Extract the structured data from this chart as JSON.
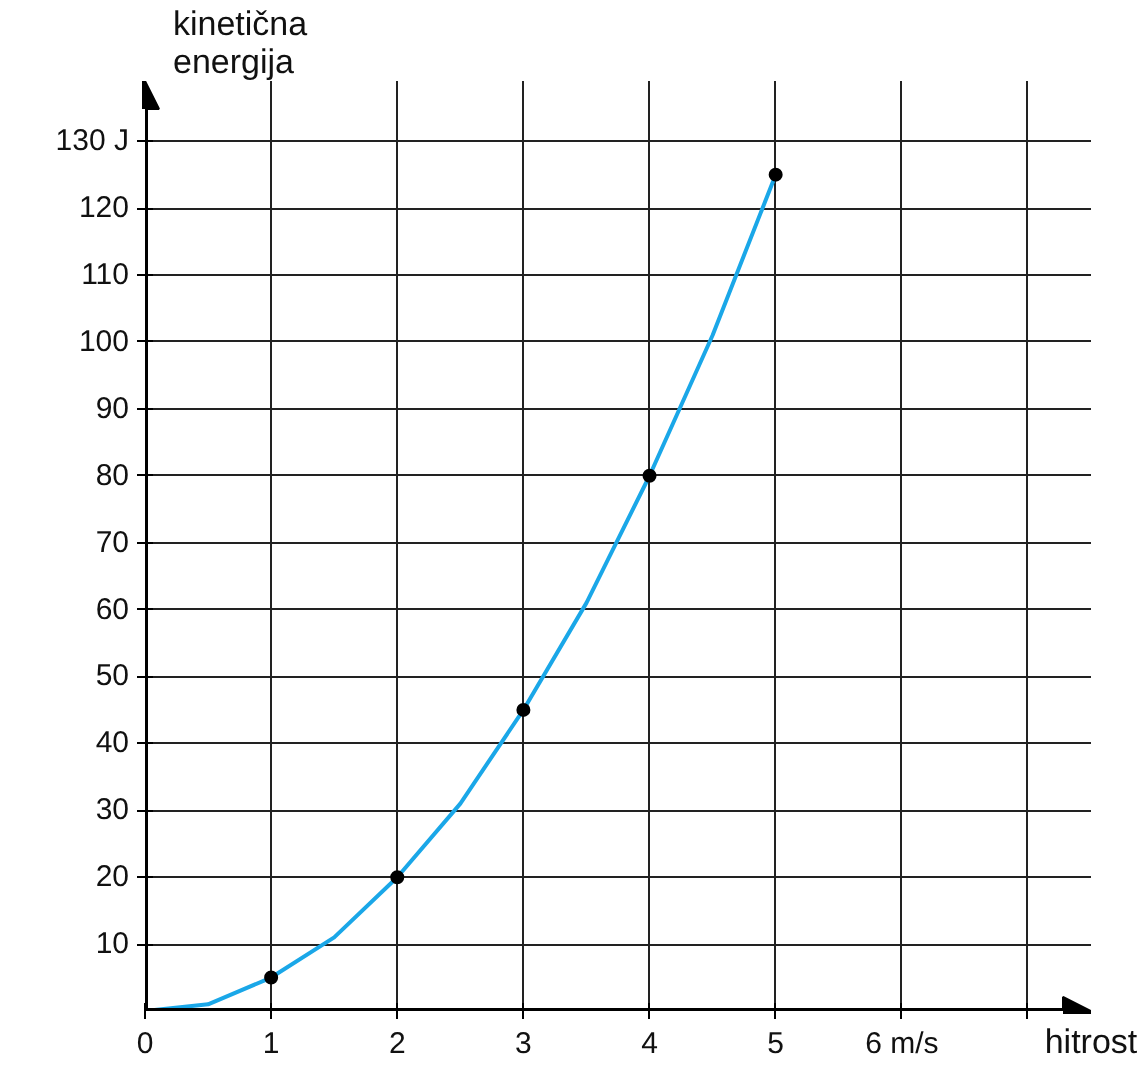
{
  "chart_data": {
    "type": "line",
    "xlabel": "hitrost",
    "ylabel": "kinetična energija",
    "xlim": [
      0,
      7.5
    ],
    "ylim": [
      0,
      139
    ],
    "xticks": [
      0,
      1,
      2,
      3,
      4,
      5,
      {
        "value": 6,
        "label": "6 m/s"
      },
      {
        "value": 7,
        "label": null
      }
    ],
    "yticks": [
      10,
      20,
      30,
      40,
      50,
      60,
      70,
      80,
      90,
      100,
      110,
      120,
      {
        "value": 130,
        "label": "130 J"
      }
    ],
    "grid": true,
    "series": [
      {
        "color": "#1aa7e8",
        "marker": "none",
        "x": [
          0,
          0.5,
          1,
          1.5,
          2,
          2.5,
          3,
          3.5,
          4,
          4.5,
          5
        ],
        "values": [
          0,
          1,
          5,
          11,
          20,
          31,
          45,
          61,
          80,
          101,
          125
        ]
      },
      {
        "type": "scatter",
        "color": "#000000",
        "marker": "circle",
        "x": [
          1,
          2,
          3,
          4,
          5
        ],
        "values": [
          5,
          20,
          45,
          80,
          125
        ]
      }
    ]
  }
}
